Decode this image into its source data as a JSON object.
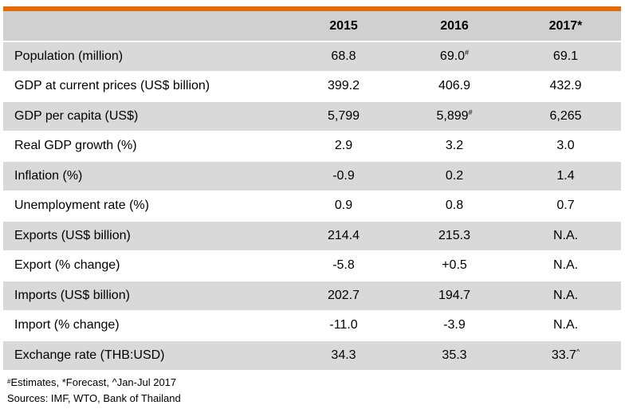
{
  "colors": {
    "accent_bar": "#e36c09",
    "header_bg": "#d0d0d0",
    "shaded_row_bg": "#d9d9d9"
  },
  "table": {
    "columns": [
      "2015",
      "2016",
      "2017*"
    ],
    "rows": [
      {
        "label": "Population (million)",
        "values": [
          "68.8",
          "69.0",
          "69.1"
        ],
        "marks": [
          "",
          "#",
          ""
        ]
      },
      {
        "label": "GDP at current prices (US$ billion)",
        "values": [
          "399.2",
          "406.9",
          "432.9"
        ],
        "marks": [
          "",
          "",
          ""
        ]
      },
      {
        "label": "GDP per capita (US$)",
        "values": [
          "5,799",
          "5,899",
          "6,265"
        ],
        "marks": [
          "",
          "#",
          ""
        ]
      },
      {
        "label": "Real GDP growth (%)",
        "values": [
          "2.9",
          "3.2",
          "3.0"
        ],
        "marks": [
          "",
          "",
          ""
        ]
      },
      {
        "label": "Inflation (%)",
        "values": [
          "-0.9",
          "0.2",
          "1.4"
        ],
        "marks": [
          "",
          "",
          ""
        ]
      },
      {
        "label": "Unemployment rate (%)",
        "values": [
          "0.9",
          "0.8",
          "0.7"
        ],
        "marks": [
          "",
          "",
          ""
        ]
      },
      {
        "label": "Exports (US$ billion)",
        "values": [
          "214.4",
          "215.3",
          "N.A."
        ],
        "marks": [
          "",
          "",
          ""
        ]
      },
      {
        "label": "Export (% change)",
        "values": [
          "-5.8",
          "+0.5",
          "N.A."
        ],
        "marks": [
          "",
          "",
          ""
        ]
      },
      {
        "label": "Imports (US$ billion)",
        "values": [
          "202.7",
          "194.7",
          "N.A."
        ],
        "marks": [
          "",
          "",
          ""
        ]
      },
      {
        "label": "Import (% change)",
        "values": [
          "-11.0",
          "-3.9",
          "N.A."
        ],
        "marks": [
          "",
          "",
          ""
        ]
      },
      {
        "label": "Exchange rate (THB:USD)",
        "values": [
          "34.3",
          "35.3",
          "33.7"
        ],
        "marks": [
          "",
          "",
          "^"
        ]
      }
    ]
  },
  "footnotes": {
    "estimates_mark": "#",
    "estimates_text": "Estimates, *Forecast, ^Jan-Jul 2017",
    "sources": "Sources: IMF, WTO, Bank of Thailand"
  }
}
